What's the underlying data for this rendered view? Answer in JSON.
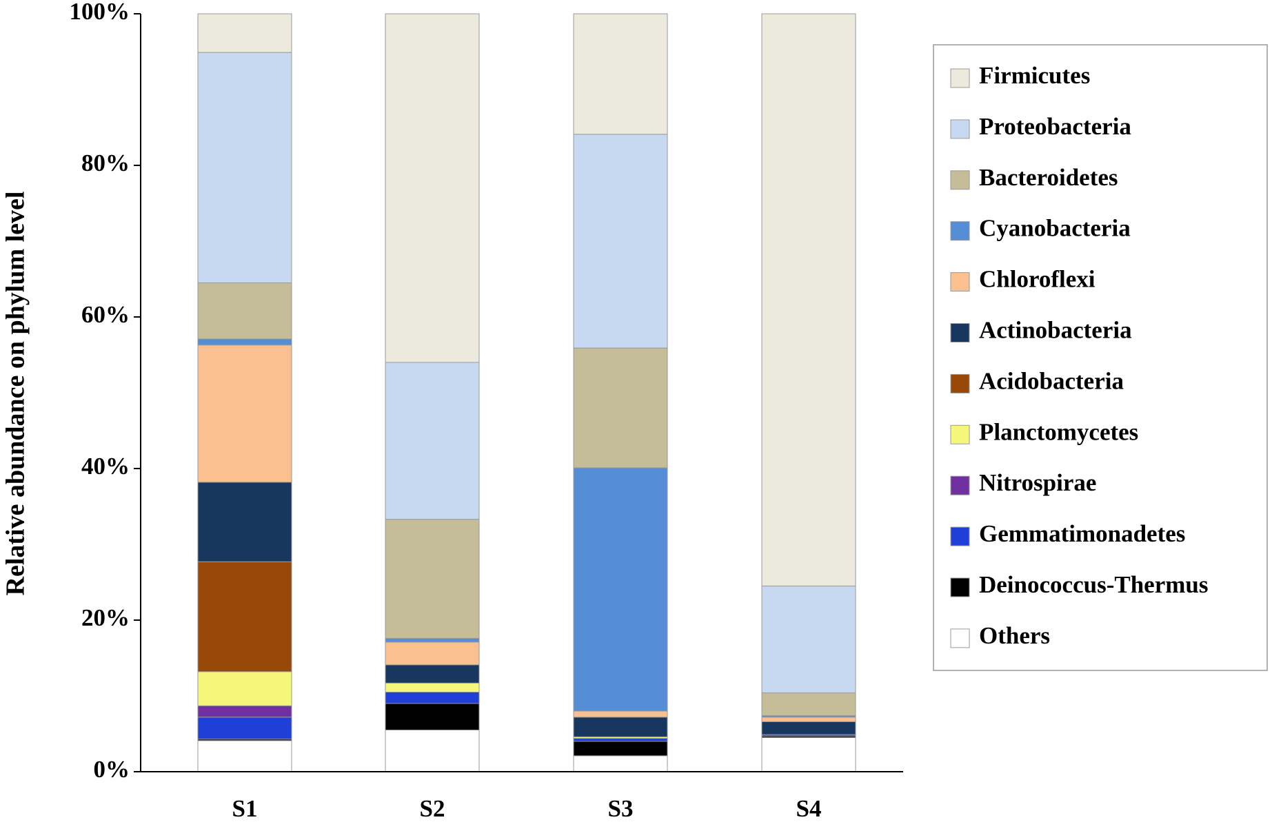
{
  "chart_data": {
    "type": "stacked-bar",
    "y_label": "Relative abundance on phylum level",
    "categories": [
      "S1",
      "S2",
      "S3",
      "S4"
    ],
    "ylim": [
      0,
      100
    ],
    "yticks": [
      {
        "value": 0,
        "label": "0%"
      },
      {
        "value": 20,
        "label": "20%"
      },
      {
        "value": 40,
        "label": "40%"
      },
      {
        "value": 60,
        "label": "60%"
      },
      {
        "value": 80,
        "label": "80%"
      },
      {
        "value": 100,
        "label": "100%"
      }
    ],
    "series": [
      {
        "name": "Firmicutes",
        "color": "#ece9dd",
        "values": [
          5.1,
          46.0,
          15.9,
          75.5
        ]
      },
      {
        "name": "Proteobacteria",
        "color": "#c6d9f1",
        "values": [
          30.4,
          20.7,
          28.2,
          14.1
        ]
      },
      {
        "name": "Bacteroidetes",
        "color": "#c4bd97",
        "values": [
          7.4,
          15.7,
          15.8,
          3.0
        ]
      },
      {
        "name": "Cyanobacteria",
        "color": "#558ed5",
        "values": [
          0.8,
          0.5,
          32.1,
          0.2
        ]
      },
      {
        "name": "Chloroflexi",
        "color": "#fac090",
        "values": [
          18.1,
          3.0,
          0.8,
          0.6
        ]
      },
      {
        "name": "Actinobacteria",
        "color": "#17375e",
        "values": [
          10.5,
          2.4,
          2.6,
          1.7
        ]
      },
      {
        "name": "Acidobacteria",
        "color": "#984807",
        "values": [
          14.5,
          0,
          0,
          0
        ]
      },
      {
        "name": "Planctomycetes",
        "color": "#f5f77b",
        "values": [
          4.5,
          1.2,
          0.2,
          0
        ]
      },
      {
        "name": "Nitrospirae",
        "color": "#7030a0",
        "values": [
          1.5,
          0,
          0,
          0
        ]
      },
      {
        "name": "Gemmatimonadetes",
        "color": "#1f3fd6",
        "values": [
          2.9,
          1.5,
          0.4,
          0.2
        ]
      },
      {
        "name": "Deinococcus-Thermus",
        "color": "#000000",
        "values": [
          0.2,
          3.5,
          1.9,
          0.2
        ]
      },
      {
        "name": "Others",
        "color": "#ffffff",
        "values": [
          4.1,
          5.5,
          2.1,
          4.5
        ]
      }
    ]
  }
}
